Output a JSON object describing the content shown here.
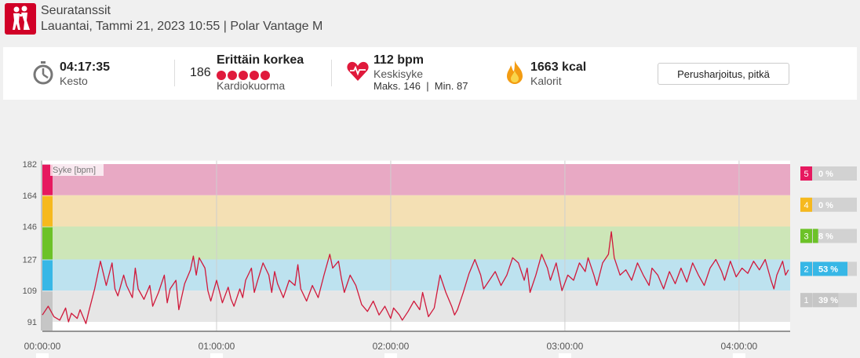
{
  "header": {
    "sport": "Seuratanssit",
    "meta": "Lauantai, Tammi 21, 2023 10:55 | Polar Vantage M",
    "logo_icon": "dancing-couple-icon"
  },
  "summary": {
    "duration": {
      "value": "04:17:35",
      "label": "Kesto",
      "icon": "stopwatch-icon"
    },
    "load": {
      "number": "186",
      "title": "Erittäin korkea",
      "label": "Kardiokuorma",
      "dots": 5
    },
    "heart_rate": {
      "value": "112 bpm",
      "label": "Keskisyke",
      "detail": "Maks. 146  |  Min. 87",
      "icon": "heart-icon"
    },
    "calories": {
      "value": "1663 kcal",
      "label": "Kalorit",
      "icon": "flame-icon"
    },
    "benefit_button": "Perusharjoitus, pitkä"
  },
  "colors": {
    "zone5": "#e8a9c4",
    "zone4": "#f4e0b4",
    "zone3": "#cde6b8",
    "zone2": "#bde2ef",
    "zone1": "#e6e6e6",
    "zone5_strong": "#e6195f",
    "zone4_strong": "#f6b91e",
    "zone3_strong": "#6cc227",
    "zone2_strong": "#37b7e6",
    "zone1_strong": "#c6c6c6",
    "line": "#d0193b"
  },
  "chart_data": {
    "type": "line",
    "ylabel": "Syke [bpm]",
    "yticks": [
      182,
      164,
      146,
      127,
      109,
      91
    ],
    "ylim": [
      86,
      184
    ],
    "xlim": [
      0,
      257.6
    ],
    "xticks": [
      {
        "label": "00:00:00",
        "minutes": 0
      },
      {
        "label": "01:00:00",
        "minutes": 60
      },
      {
        "label": "02:00:00",
        "minutes": 120
      },
      {
        "label": "03:00:00",
        "minutes": 180
      },
      {
        "label": "04:00:00",
        "minutes": 240
      }
    ],
    "zones": [
      {
        "zone": "5",
        "from": 164,
        "to": 182,
        "percent": "0 %"
      },
      {
        "zone": "4",
        "from": 146,
        "to": 164,
        "percent": "0 %"
      },
      {
        "zone": "3",
        "from": 127,
        "to": 146,
        "percent": "8 %"
      },
      {
        "zone": "2",
        "from": 109,
        "to": 127,
        "percent": "53 %"
      },
      {
        "zone": "1",
        "from": 91,
        "to": 109,
        "percent": "39 %"
      }
    ],
    "series": [
      {
        "values": [
          [
            0,
            95
          ],
          [
            2,
            100
          ],
          [
            4,
            94
          ],
          [
            6,
            92
          ],
          [
            8,
            99
          ],
          [
            9,
            91
          ],
          [
            10,
            96
          ],
          [
            12,
            93
          ],
          [
            13,
            98
          ],
          [
            14,
            94
          ],
          [
            15,
            90
          ],
          [
            16,
            97
          ],
          [
            18,
            110
          ],
          [
            20,
            126
          ],
          [
            21,
            119
          ],
          [
            22,
            112
          ],
          [
            24,
            125
          ],
          [
            25,
            110
          ],
          [
            26,
            106
          ],
          [
            28,
            118
          ],
          [
            29,
            112
          ],
          [
            31,
            105
          ],
          [
            32,
            122
          ],
          [
            33,
            110
          ],
          [
            35,
            104
          ],
          [
            37,
            112
          ],
          [
            38,
            100
          ],
          [
            40,
            108
          ],
          [
            42,
            118
          ],
          [
            43,
            102
          ],
          [
            44,
            110
          ],
          [
            46,
            115
          ],
          [
            47,
            98
          ],
          [
            49,
            113
          ],
          [
            51,
            121
          ],
          [
            52,
            129
          ],
          [
            53,
            118
          ],
          [
            54,
            128
          ],
          [
            56,
            122
          ],
          [
            57,
            109
          ],
          [
            58,
            103
          ],
          [
            60,
            115
          ],
          [
            62,
            102
          ],
          [
            64,
            111
          ],
          [
            65,
            104
          ],
          [
            66,
            100
          ],
          [
            68,
            110
          ],
          [
            69,
            105
          ],
          [
            70,
            115
          ],
          [
            72,
            122
          ],
          [
            73,
            108
          ],
          [
            74,
            114
          ],
          [
            76,
            125
          ],
          [
            78,
            118
          ],
          [
            79,
            108
          ],
          [
            80,
            120
          ],
          [
            81,
            113
          ],
          [
            83,
            105
          ],
          [
            85,
            115
          ],
          [
            87,
            112
          ],
          [
            88,
            124
          ],
          [
            89,
            110
          ],
          [
            91,
            103
          ],
          [
            93,
            112
          ],
          [
            95,
            105
          ],
          [
            97,
            118
          ],
          [
            99,
            130
          ],
          [
            100,
            122
          ],
          [
            102,
            126
          ],
          [
            103,
            116
          ],
          [
            104,
            108
          ],
          [
            106,
            118
          ],
          [
            108,
            112
          ],
          [
            110,
            101
          ],
          [
            112,
            97
          ],
          [
            114,
            103
          ],
          [
            116,
            95
          ],
          [
            118,
            100
          ],
          [
            120,
            93
          ],
          [
            121,
            99
          ],
          [
            123,
            95
          ],
          [
            124,
            92
          ],
          [
            126,
            97
          ],
          [
            128,
            103
          ],
          [
            130,
            98
          ],
          [
            131,
            108
          ],
          [
            133,
            94
          ],
          [
            135,
            99
          ],
          [
            137,
            118
          ],
          [
            139,
            108
          ],
          [
            141,
            100
          ],
          [
            142,
            95
          ],
          [
            143,
            98
          ],
          [
            145,
            108
          ],
          [
            147,
            119
          ],
          [
            149,
            127
          ],
          [
            151,
            118
          ],
          [
            152,
            110
          ],
          [
            154,
            115
          ],
          [
            156,
            120
          ],
          [
            158,
            112
          ],
          [
            160,
            118
          ],
          [
            162,
            128
          ],
          [
            164,
            125
          ],
          [
            166,
            115
          ],
          [
            167,
            122
          ],
          [
            168,
            108
          ],
          [
            170,
            118
          ],
          [
            172,
            130
          ],
          [
            174,
            122
          ],
          [
            175,
            115
          ],
          [
            177,
            125
          ],
          [
            179,
            109
          ],
          [
            181,
            118
          ],
          [
            183,
            115
          ],
          [
            185,
            125
          ],
          [
            187,
            120
          ],
          [
            188,
            128
          ],
          [
            190,
            118
          ],
          [
            191,
            112
          ],
          [
            193,
            125
          ],
          [
            195,
            130
          ],
          [
            196,
            143
          ],
          [
            197,
            128
          ],
          [
            199,
            118
          ],
          [
            201,
            121
          ],
          [
            203,
            115
          ],
          [
            205,
            125
          ],
          [
            207,
            118
          ],
          [
            209,
            112
          ],
          [
            210,
            122
          ],
          [
            212,
            118
          ],
          [
            214,
            110
          ],
          [
            216,
            120
          ],
          [
            218,
            113
          ],
          [
            220,
            122
          ],
          [
            222,
            114
          ],
          [
            224,
            125
          ],
          [
            226,
            118
          ],
          [
            228,
            112
          ],
          [
            230,
            122
          ],
          [
            232,
            127
          ],
          [
            234,
            120
          ],
          [
            235,
            115
          ],
          [
            237,
            126
          ],
          [
            239,
            117
          ],
          [
            241,
            122
          ],
          [
            243,
            119
          ],
          [
            245,
            126
          ],
          [
            247,
            121
          ],
          [
            249,
            127
          ],
          [
            251,
            115
          ],
          [
            252,
            110
          ],
          [
            253,
            118
          ],
          [
            255,
            126
          ],
          [
            256,
            118
          ],
          [
            257,
            121
          ]
        ]
      }
    ]
  }
}
